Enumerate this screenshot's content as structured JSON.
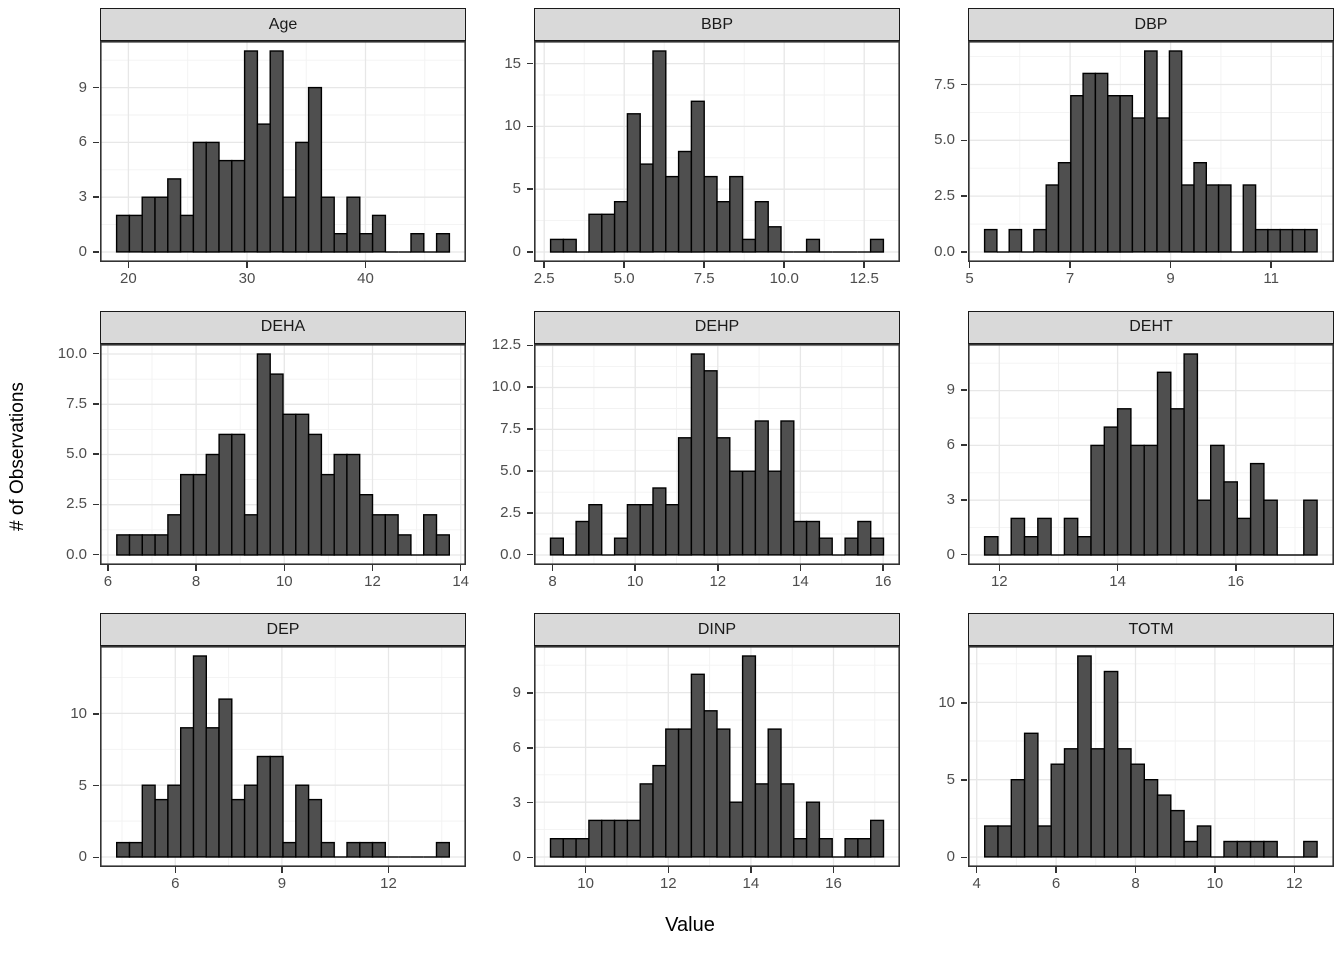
{
  "chart_data": {
    "type": "bar",
    "variant": "faceted_histogram_grid",
    "title": "",
    "xlabel": "Value",
    "ylabel": "# of Observations",
    "grid": true,
    "legend": "none",
    "bar_fill": "#4f4f4f",
    "bar_stroke": "#000000",
    "strip_bg": "#d9d9d9",
    "panel_border": "#333333",
    "grid_major": "#e7e7e7",
    "grid_minor": "#f2f2f2",
    "axis_text_color": "#4d4d4d",
    "facets": [
      {
        "title": "Age",
        "bin_start": 19.0,
        "bin_width": 1.08,
        "counts": [
          2,
          2,
          3,
          3,
          4,
          2,
          6,
          6,
          5,
          5,
          11,
          7,
          11,
          3,
          6,
          9,
          3,
          1,
          3,
          1,
          2,
          0,
          0,
          1,
          0,
          1
        ],
        "xlim": [
          17.6,
          48.48
        ],
        "xticks": [
          20,
          30,
          40
        ],
        "xtick_labels": [
          "20",
          "30",
          "40"
        ],
        "ylim": [
          -0.55,
          11.55
        ],
        "yticks": [
          0,
          3,
          6,
          9
        ],
        "ytick_labels": [
          "0",
          "3",
          "6",
          "9"
        ]
      },
      {
        "title": "BBP",
        "bin_start": 2.7,
        "bin_width": 0.4,
        "counts": [
          1,
          1,
          0,
          3,
          3,
          4,
          11,
          7,
          16,
          6,
          8,
          12,
          6,
          4,
          6,
          1,
          4,
          2,
          0,
          0,
          1,
          0,
          0,
          0,
          0,
          1
        ],
        "xlim": [
          2.18,
          13.62
        ],
        "xticks": [
          2.5,
          5.0,
          7.5,
          10.0,
          12.5
        ],
        "xtick_labels": [
          "2.5",
          "5.0",
          "7.5",
          "10.0",
          "12.5"
        ],
        "ylim": [
          -0.8,
          16.8
        ],
        "yticks": [
          0,
          5,
          10,
          15
        ],
        "ytick_labels": [
          "0",
          "5",
          "10",
          "15"
        ]
      },
      {
        "title": "DBP",
        "bin_start": 5.3,
        "bin_width": 0.245,
        "counts": [
          1,
          0,
          1,
          0,
          1,
          3,
          4,
          7,
          8,
          8,
          7,
          7,
          6,
          9,
          6,
          9,
          3,
          4,
          3,
          3,
          0,
          3,
          1,
          1,
          1,
          1,
          1
        ],
        "xlim": [
          4.97,
          12.25
        ],
        "xticks": [
          5,
          7,
          9,
          11
        ],
        "xtick_labels": [
          "5",
          "7",
          "9",
          "11"
        ],
        "ylim": [
          -0.45,
          9.45
        ],
        "yticks": [
          0,
          2.5,
          5,
          7.5
        ],
        "ytick_labels": [
          "0.0",
          "2.5",
          "5.0",
          "7.5"
        ]
      },
      {
        "title": "DEHA",
        "bin_start": 6.2,
        "bin_width": 0.29,
        "counts": [
          1,
          1,
          1,
          1,
          2,
          4,
          4,
          5,
          6,
          6,
          2,
          10,
          9,
          7,
          7,
          6,
          4,
          5,
          5,
          3,
          2,
          2,
          1,
          0,
          2,
          1
        ],
        "xlim": [
          5.82,
          14.12
        ],
        "xticks": [
          6,
          8,
          10,
          12,
          14
        ],
        "xtick_labels": [
          "6",
          "8",
          "10",
          "12",
          "14"
        ],
        "ylim": [
          -0.5,
          10.5
        ],
        "yticks": [
          0,
          2.5,
          5,
          7.5,
          10
        ],
        "ytick_labels": [
          "0.0",
          "2.5",
          "5.0",
          "7.5",
          "10.0"
        ]
      },
      {
        "title": "DEHP",
        "bin_start": 7.95,
        "bin_width": 0.31,
        "counts": [
          1,
          0,
          2,
          3,
          0,
          1,
          3,
          3,
          4,
          3,
          7,
          12,
          11,
          7,
          5,
          5,
          8,
          5,
          8,
          2,
          2,
          1,
          0,
          1,
          2,
          1
        ],
        "xlim": [
          7.55,
          16.41
        ],
        "xticks": [
          8,
          10,
          12,
          14,
          16
        ],
        "xtick_labels": [
          "8",
          "10",
          "12",
          "14",
          "16"
        ],
        "ylim": [
          -0.6,
          12.6
        ],
        "yticks": [
          0,
          2.5,
          5,
          7.5,
          10,
          12.5
        ],
        "ytick_labels": [
          "0.0",
          "2.5",
          "5.0",
          "7.5",
          "10.0",
          "12.5"
        ]
      },
      {
        "title": "DEHT",
        "bin_start": 11.75,
        "bin_width": 0.225,
        "counts": [
          1,
          0,
          2,
          1,
          2,
          0,
          2,
          1,
          6,
          7,
          8,
          6,
          6,
          10,
          8,
          11,
          3,
          6,
          4,
          2,
          5,
          3,
          0,
          0,
          3
        ],
        "xlim": [
          11.47,
          17.66
        ],
        "xticks": [
          12,
          14,
          16
        ],
        "xtick_labels": [
          "12",
          "14",
          "16"
        ],
        "ylim": [
          -0.55,
          11.55
        ],
        "yticks": [
          0,
          3,
          6,
          9
        ],
        "ytick_labels": [
          "0",
          "3",
          "6",
          "9"
        ]
      },
      {
        "title": "DEP",
        "bin_start": 4.35,
        "bin_width": 0.36,
        "counts": [
          1,
          1,
          5,
          4,
          5,
          9,
          14,
          9,
          11,
          4,
          5,
          7,
          7,
          1,
          5,
          4,
          1,
          0,
          1,
          1,
          1,
          0,
          0,
          0,
          0,
          1
        ],
        "xlim": [
          3.88,
          14.18
        ],
        "xticks": [
          6,
          9,
          12
        ],
        "xtick_labels": [
          "6",
          "9",
          "12"
        ],
        "ylim": [
          -0.7,
          14.7
        ],
        "yticks": [
          0,
          5,
          10
        ],
        "ytick_labels": [
          "0",
          "5",
          "10"
        ]
      },
      {
        "title": "DINP",
        "bin_start": 9.15,
        "bin_width": 0.31,
        "counts": [
          1,
          1,
          1,
          2,
          2,
          2,
          2,
          4,
          5,
          7,
          7,
          10,
          8,
          7,
          3,
          11,
          4,
          7,
          4,
          1,
          3,
          1,
          0,
          1,
          1,
          2
        ],
        "xlim": [
          8.75,
          17.61
        ],
        "xticks": [
          10,
          12,
          14,
          16
        ],
        "xtick_labels": [
          "10",
          "12",
          "14",
          "16"
        ],
        "ylim": [
          -0.55,
          11.55
        ],
        "yticks": [
          0,
          3,
          6,
          9
        ],
        "ytick_labels": [
          "0",
          "3",
          "6",
          "9"
        ]
      },
      {
        "title": "TOTM",
        "bin_start": 4.2,
        "bin_width": 0.335,
        "counts": [
          2,
          2,
          5,
          8,
          2,
          6,
          7,
          13,
          7,
          12,
          7,
          6,
          5,
          4,
          3,
          1,
          2,
          0,
          1,
          1,
          1,
          1,
          0,
          0,
          1
        ],
        "xlim": [
          3.78,
          13.0
        ],
        "xticks": [
          4,
          6,
          8,
          10,
          12
        ],
        "xtick_labels": [
          "4",
          "6",
          "8",
          "10",
          "12"
        ],
        "ylim": [
          -0.65,
          13.65
        ],
        "yticks": [
          0,
          5,
          10
        ],
        "ytick_labels": [
          "0",
          "5",
          "10"
        ]
      }
    ]
  }
}
